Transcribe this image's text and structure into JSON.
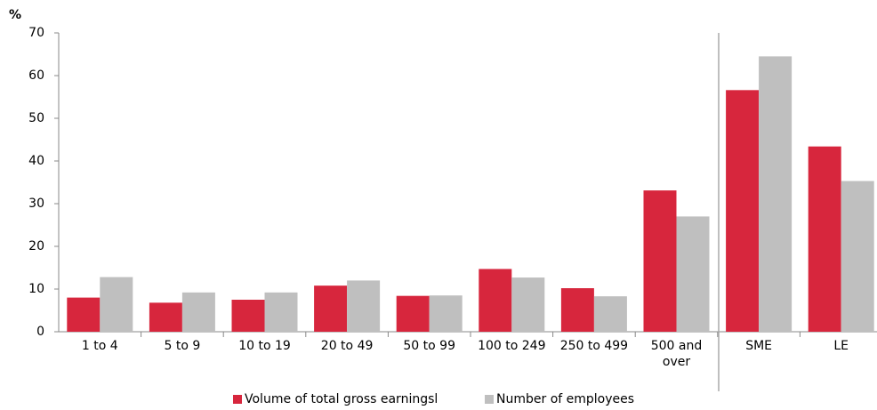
{
  "chart_data": {
    "type": "bar",
    "y_label": "%",
    "categories": [
      "1 to 4",
      "5 to 9",
      "10 to 19",
      "20 to 49",
      "50 to 99",
      "100 to 249",
      "250 to 499",
      "500 and over",
      "SME",
      "LE"
    ],
    "series": [
      {
        "name": "Volume of total gross earningsl",
        "color": "#d7263d",
        "values": [
          8.0,
          6.8,
          7.5,
          10.8,
          8.4,
          14.7,
          10.2,
          33.1,
          56.6,
          43.4
        ]
      },
      {
        "name": "Number of employees",
        "color": "#bfbfbf",
        "values": [
          12.8,
          9.2,
          9.2,
          12.0,
          8.5,
          12.7,
          8.3,
          27.0,
          64.5,
          35.3
        ]
      }
    ],
    "ylim": [
      0,
      70
    ],
    "yticks": [
      0,
      10,
      20,
      30,
      40,
      50,
      60,
      70
    ],
    "legend": "bottom"
  }
}
